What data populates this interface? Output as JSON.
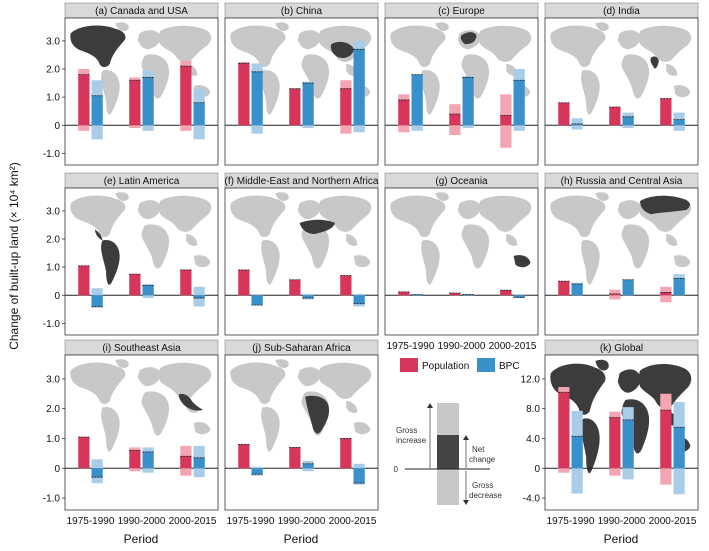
{
  "figure": {
    "ylabel": "Change of built-up land (× 10⁴ km²)",
    "xlabel": "Period",
    "periods": [
      "1975-1990",
      "1990-2000",
      "2000-2015"
    ]
  },
  "legend": {
    "population": "Population",
    "bpc": "BPC",
    "gross_increase": "Gross increase",
    "net_change": "Net change",
    "gross_decrease": "Gross decrease",
    "zero": "0"
  },
  "colors": {
    "population": "#d6365a",
    "population_light": "#f2a6b3",
    "bpc": "#3a90c8",
    "bpc_light": "#a9cde9",
    "header": "#d9d9d9",
    "map_land": "#c8c8c8",
    "map_highlight": "#3c3c3c"
  },
  "chart_data": [
    {
      "type": "bar",
      "title": "(a) Canada and USA",
      "ylim": [
        -1.2,
        3.6
      ],
      "yticks": [
        "3.0",
        "2.0",
        "1.0",
        "0",
        "-1.0"
      ],
      "categories": [
        "1975-1990",
        "1990-2000",
        "2000-2015"
      ],
      "series": [
        {
          "name": "Population",
          "net": [
            1.8,
            1.6,
            2.1
          ],
          "gross_increase": [
            2.0,
            1.7,
            2.3
          ],
          "gross_decrease": [
            -0.2,
            -0.1,
            -0.2
          ]
        },
        {
          "name": "BPC",
          "net": [
            1.05,
            1.7,
            0.8
          ],
          "gross_increase": [
            1.6,
            1.95,
            1.3
          ],
          "gross_decrease": [
            -0.5,
            -0.2,
            -0.5
          ]
        }
      ]
    },
    {
      "type": "bar",
      "title": "(b) China",
      "ylim": [
        -1.2,
        3.6
      ],
      "yticks": [
        "3.0",
        "2.0",
        "1.0",
        "0",
        "-1.0"
      ],
      "categories": [
        "1975-1990",
        "1990-2000",
        "2000-2015"
      ],
      "series": [
        {
          "name": "Population",
          "net": [
            2.2,
            1.3,
            1.3
          ],
          "gross_increase": [
            2.25,
            1.3,
            1.6
          ],
          "gross_decrease": [
            0.0,
            0.0,
            -0.3
          ]
        },
        {
          "name": "BPC",
          "net": [
            1.9,
            1.5,
            2.7
          ],
          "gross_increase": [
            2.2,
            1.55,
            3.0
          ],
          "gross_decrease": [
            -0.3,
            -0.1,
            -0.25
          ]
        }
      ]
    },
    {
      "type": "bar",
      "title": "(c) Europe",
      "ylim": [
        -1.2,
        3.6
      ],
      "yticks": [
        "3.0",
        "2.0",
        "1.0",
        "0",
        "-1.0"
      ],
      "categories": [
        "1975-1990",
        "1990-2000",
        "2000-2015"
      ],
      "series": [
        {
          "name": "Population",
          "net": [
            0.9,
            0.4,
            0.35
          ],
          "gross_increase": [
            1.1,
            0.75,
            1.1
          ],
          "gross_decrease": [
            -0.25,
            -0.35,
            -0.8
          ]
        },
        {
          "name": "BPC",
          "net": [
            1.8,
            1.7,
            1.6
          ],
          "gross_increase": [
            1.8,
            1.75,
            2.0
          ],
          "gross_decrease": [
            -0.2,
            -0.1,
            -0.2
          ]
        }
      ]
    },
    {
      "type": "bar",
      "title": "(d) India",
      "ylim": [
        -1.2,
        3.6
      ],
      "yticks": [
        "3.0",
        "2.0",
        "1.0",
        "0",
        "-1.0"
      ],
      "categories": [
        "1975-1990",
        "1990-2000",
        "2000-2015"
      ],
      "series": [
        {
          "name": "Population",
          "net": [
            0.8,
            0.65,
            0.95
          ],
          "gross_increase": [
            0.8,
            0.65,
            0.95
          ],
          "gross_decrease": [
            0,
            0,
            0
          ]
        },
        {
          "name": "BPC",
          "net": [
            0.05,
            0.3,
            0.2
          ],
          "gross_increase": [
            0.25,
            0.45,
            0.45
          ],
          "gross_decrease": [
            -0.15,
            -0.1,
            -0.2
          ]
        }
      ]
    },
    {
      "type": "bar",
      "title": "(e) Latin America",
      "ylim": [
        -1.2,
        3.6
      ],
      "yticks": [
        "3.0",
        "2.0",
        "1.0",
        "0",
        "-1.0"
      ],
      "categories": [
        "1975-1990",
        "1990-2000",
        "2000-2015"
      ],
      "series": [
        {
          "name": "Population",
          "net": [
            1.05,
            0.75,
            0.9
          ],
          "gross_increase": [
            1.05,
            0.75,
            0.9
          ],
          "gross_decrease": [
            0,
            0,
            0
          ]
        },
        {
          "name": "BPC",
          "net": [
            -0.4,
            0.35,
            -0.1
          ],
          "gross_increase": [
            0.25,
            0.4,
            0.3
          ],
          "gross_decrease": [
            -0.45,
            -0.1,
            -0.4
          ]
        }
      ]
    },
    {
      "type": "bar",
      "title": "(f) Middle-East and Northern Africa",
      "ylim": [
        -1.2,
        3.6
      ],
      "yticks": [
        "3.0",
        "2.0",
        "1.0",
        "0",
        "-1.0"
      ],
      "categories": [
        "1975-1990",
        "1990-2000",
        "2000-2015"
      ],
      "series": [
        {
          "name": "Population",
          "net": [
            0.9,
            0.55,
            0.7
          ],
          "gross_increase": [
            0.9,
            0.55,
            0.7
          ],
          "gross_decrease": [
            0,
            0,
            0
          ]
        },
        {
          "name": "BPC",
          "net": [
            -0.35,
            -0.1,
            -0.3
          ],
          "gross_increase": [
            0.0,
            0.05,
            0.05
          ],
          "gross_decrease": [
            -0.35,
            -0.15,
            -0.4
          ]
        }
      ]
    },
    {
      "type": "bar",
      "title": "(g) Oceania",
      "ylim": [
        -1.2,
        3.6
      ],
      "yticks": [
        "3.0",
        "2.0",
        "1.0",
        "0",
        "-1.0"
      ],
      "categories": [
        "1975-1990",
        "1990-2000",
        "2000-2015"
      ],
      "series": [
        {
          "name": "Population",
          "net": [
            0.12,
            0.08,
            0.18
          ],
          "gross_increase": [
            0.12,
            0.08,
            0.18
          ],
          "gross_decrease": [
            0,
            0,
            0
          ]
        },
        {
          "name": "BPC",
          "net": [
            0.02,
            0.03,
            -0.08
          ],
          "gross_increase": [
            0.03,
            0.04,
            0.0
          ],
          "gross_decrease": [
            0.0,
            0.0,
            -0.1
          ]
        }
      ]
    },
    {
      "type": "bar",
      "title": "(h) Russia and Central Asia",
      "ylim": [
        -1.2,
        3.6
      ],
      "yticks": [
        "3.0",
        "2.0",
        "1.0",
        "0",
        "-1.0"
      ],
      "categories": [
        "1975-1990",
        "1990-2000",
        "2000-2015"
      ],
      "series": [
        {
          "name": "Population",
          "net": [
            0.5,
            0.05,
            0.1
          ],
          "gross_increase": [
            0.5,
            0.2,
            0.3
          ],
          "gross_decrease": [
            0,
            -0.15,
            -0.25
          ]
        },
        {
          "name": "BPC",
          "net": [
            0.4,
            0.55,
            0.6
          ],
          "gross_increase": [
            0.45,
            0.55,
            0.75
          ],
          "gross_decrease": [
            0,
            0,
            0
          ]
        }
      ]
    },
    {
      "type": "bar",
      "title": "(i) Southeast Asia",
      "ylim": [
        -1.2,
        3.6
      ],
      "yticks": [
        "3.0",
        "2.0",
        "1.0",
        "0",
        "-1.0"
      ],
      "categories": [
        "1975-1990",
        "1990-2000",
        "2000-2015"
      ],
      "series": [
        {
          "name": "Population",
          "net": [
            1.05,
            0.6,
            0.4
          ],
          "gross_increase": [
            1.05,
            0.7,
            0.75
          ],
          "gross_decrease": [
            0,
            -0.1,
            -0.25
          ]
        },
        {
          "name": "BPC",
          "net": [
            -0.3,
            0.55,
            0.35
          ],
          "gross_increase": [
            0.3,
            0.7,
            0.75
          ],
          "gross_decrease": [
            -0.5,
            -0.15,
            -0.3
          ]
        }
      ]
    },
    {
      "type": "bar",
      "title": "(j) Sub-Saharan Africa",
      "ylim": [
        -1.2,
        3.6
      ],
      "yticks": [
        "3.0",
        "2.0",
        "1.0",
        "0",
        "-1.0"
      ],
      "categories": [
        "1975-1990",
        "1990-2000",
        "2000-2015"
      ],
      "series": [
        {
          "name": "Population",
          "net": [
            0.8,
            0.7,
            1.0
          ],
          "gross_increase": [
            0.8,
            0.7,
            1.0
          ],
          "gross_decrease": [
            0,
            0,
            0
          ]
        },
        {
          "name": "BPC",
          "net": [
            -0.2,
            0.15,
            -0.5
          ],
          "gross_increase": [
            0.05,
            0.25,
            0.15
          ],
          "gross_decrease": [
            -0.25,
            -0.1,
            -0.55
          ]
        }
      ]
    },
    {
      "type": "bar",
      "title": "(k) Global",
      "ylim": [
        -4.8,
        14.4
      ],
      "yticks": [
        "12.0",
        "8.0",
        "4.0",
        "0",
        "-4.0"
      ],
      "categories": [
        "1975-1990",
        "1990-2000",
        "2000-2015"
      ],
      "series": [
        {
          "name": "Population",
          "net": [
            10.2,
            6.8,
            7.8
          ],
          "gross_increase": [
            10.9,
            7.6,
            10.0
          ],
          "gross_decrease": [
            -0.6,
            -1.0,
            -2.2
          ]
        },
        {
          "name": "BPC",
          "net": [
            4.3,
            6.5,
            5.5
          ],
          "gross_increase": [
            7.7,
            8.2,
            8.9
          ],
          "gross_decrease": [
            -3.4,
            -1.5,
            -3.5
          ]
        }
      ]
    }
  ]
}
